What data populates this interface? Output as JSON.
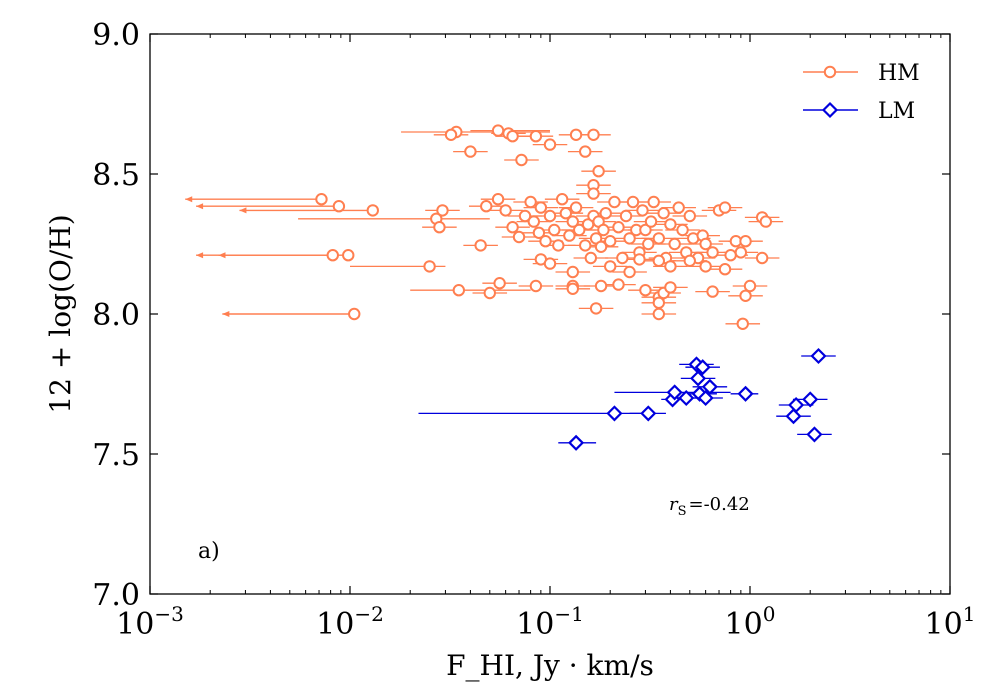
{
  "chart_data": {
    "type": "scatter",
    "title": "",
    "xlabel": "F_HI, Jy · km/s",
    "ylabel": "12 + log(O/H)",
    "xscale": "log",
    "xlim": [
      0.001,
      10
    ],
    "ylim": [
      7.0,
      9.0
    ],
    "xticks": [
      {
        "value": 0.001,
        "base": "10",
        "exp": "−3"
      },
      {
        "value": 0.01,
        "base": "10",
        "exp": "−2"
      },
      {
        "value": 0.1,
        "base": "10",
        "exp": "−1"
      },
      {
        "value": 1,
        "base": "10",
        "exp": "0"
      },
      {
        "value": 10,
        "base": "10",
        "exp": "1"
      }
    ],
    "yticks": [
      {
        "value": 7.0,
        "label": "7.0"
      },
      {
        "value": 7.5,
        "label": "7.5"
      },
      {
        "value": 8.0,
        "label": "8.0"
      },
      {
        "value": 8.5,
        "label": "8.5"
      },
      {
        "value": 9.0,
        "label": "9.0"
      }
    ],
    "grid": false,
    "legend_position": "top-right",
    "annotation": {
      "prefix": "r",
      "sub": "S",
      "value": "=-0.42"
    },
    "panel_label": "a)",
    "series": [
      {
        "name": "HM",
        "color": "#FF7F50",
        "marker": "circle",
        "points": [
          {
            "x": 0.034,
            "y": 8.65,
            "xerr": [
              0.018,
              0.1
            ]
          },
          {
            "x": 0.055,
            "y": 8.655,
            "xerr": [
              0.04,
              0.1
            ]
          },
          {
            "x": 0.032,
            "y": 8.64
          },
          {
            "x": 0.062,
            "y": 8.645
          },
          {
            "x": 0.065,
            "y": 8.635
          },
          {
            "x": 0.085,
            "y": 8.635
          },
          {
            "x": 0.135,
            "y": 8.64
          },
          {
            "x": 0.165,
            "y": 8.64
          },
          {
            "x": 0.1,
            "y": 8.605
          },
          {
            "x": 0.04,
            "y": 8.58
          },
          {
            "x": 0.15,
            "y": 8.58
          },
          {
            "x": 0.072,
            "y": 8.55
          },
          {
            "x": 0.175,
            "y": 8.51
          },
          {
            "x": 0.165,
            "y": 8.46
          },
          {
            "x": 0.165,
            "y": 8.43
          },
          {
            "x": 0.0072,
            "y": 8.41,
            "upper": 0.0015
          },
          {
            "x": 0.0088,
            "y": 8.385,
            "upper": 0.0017
          },
          {
            "x": 0.013,
            "y": 8.37,
            "upper": 0.0028
          },
          {
            "x": 0.0098,
            "y": 8.21,
            "upper": 0.0017
          },
          {
            "x": 0.0082,
            "y": 8.21,
            "upper": 0.0022
          },
          {
            "x": 0.0105,
            "y": 8.0,
            "upper": 0.0023
          },
          {
            "x": 0.027,
            "y": 8.34,
            "xerr": [
              0.0055,
              0.05
            ]
          },
          {
            "x": 0.029,
            "y": 8.37
          },
          {
            "x": 0.028,
            "y": 8.31
          },
          {
            "x": 0.045,
            "y": 8.245
          },
          {
            "x": 0.048,
            "y": 8.385
          },
          {
            "x": 0.055,
            "y": 8.41
          },
          {
            "x": 0.06,
            "y": 8.37
          },
          {
            "x": 0.065,
            "y": 8.31
          },
          {
            "x": 0.07,
            "y": 8.275
          },
          {
            "x": 0.075,
            "y": 8.35
          },
          {
            "x": 0.08,
            "y": 8.4
          },
          {
            "x": 0.083,
            "y": 8.33
          },
          {
            "x": 0.088,
            "y": 8.29
          },
          {
            "x": 0.09,
            "y": 8.38
          },
          {
            "x": 0.095,
            "y": 8.26
          },
          {
            "x": 0.1,
            "y": 8.35
          },
          {
            "x": 0.105,
            "y": 8.3
          },
          {
            "x": 0.11,
            "y": 8.245
          },
          {
            "x": 0.115,
            "y": 8.41
          },
          {
            "x": 0.12,
            "y": 8.36
          },
          {
            "x": 0.125,
            "y": 8.28
          },
          {
            "x": 0.13,
            "y": 8.33
          },
          {
            "x": 0.135,
            "y": 8.38
          },
          {
            "x": 0.14,
            "y": 8.3
          },
          {
            "x": 0.15,
            "y": 8.245
          },
          {
            "x": 0.155,
            "y": 8.32
          },
          {
            "x": 0.16,
            "y": 8.2
          },
          {
            "x": 0.165,
            "y": 8.35
          },
          {
            "x": 0.17,
            "y": 8.27
          },
          {
            "x": 0.175,
            "y": 8.33
          },
          {
            "x": 0.18,
            "y": 8.24
          },
          {
            "x": 0.185,
            "y": 8.3
          },
          {
            "x": 0.19,
            "y": 8.36
          },
          {
            "x": 0.2,
            "y": 8.26
          },
          {
            "x": 0.21,
            "y": 8.4
          },
          {
            "x": 0.22,
            "y": 8.31
          },
          {
            "x": 0.23,
            "y": 8.2
          },
          {
            "x": 0.24,
            "y": 8.35
          },
          {
            "x": 0.25,
            "y": 8.27
          },
          {
            "x": 0.26,
            "y": 8.4
          },
          {
            "x": 0.27,
            "y": 8.3
          },
          {
            "x": 0.28,
            "y": 8.22
          },
          {
            "x": 0.29,
            "y": 8.37
          },
          {
            "x": 0.3,
            "y": 8.3
          },
          {
            "x": 0.31,
            "y": 8.25
          },
          {
            "x": 0.32,
            "y": 8.33
          },
          {
            "x": 0.33,
            "y": 8.4
          },
          {
            "x": 0.35,
            "y": 8.27
          },
          {
            "x": 0.37,
            "y": 8.36
          },
          {
            "x": 0.38,
            "y": 8.2
          },
          {
            "x": 0.4,
            "y": 8.32
          },
          {
            "x": 0.42,
            "y": 8.25
          },
          {
            "x": 0.44,
            "y": 8.38
          },
          {
            "x": 0.46,
            "y": 8.3
          },
          {
            "x": 0.48,
            "y": 8.22
          },
          {
            "x": 0.5,
            "y": 8.35
          },
          {
            "x": 0.52,
            "y": 8.27
          },
          {
            "x": 0.55,
            "y": 8.2
          },
          {
            "x": 0.58,
            "y": 8.28
          },
          {
            "x": 0.6,
            "y": 8.25
          },
          {
            "x": 0.65,
            "y": 8.22
          },
          {
            "x": 0.7,
            "y": 8.37
          },
          {
            "x": 0.75,
            "y": 8.38
          },
          {
            "x": 0.8,
            "y": 8.21
          },
          {
            "x": 0.85,
            "y": 8.26
          },
          {
            "x": 0.9,
            "y": 8.22
          },
          {
            "x": 0.95,
            "y": 8.26
          },
          {
            "x": 1.15,
            "y": 8.345
          },
          {
            "x": 1.2,
            "y": 8.33
          },
          {
            "x": 1.15,
            "y": 8.2
          },
          {
            "x": 0.025,
            "y": 8.17,
            "xerr": [
              0.01,
              0.03
            ]
          },
          {
            "x": 0.09,
            "y": 8.195
          },
          {
            "x": 0.1,
            "y": 8.18
          },
          {
            "x": 0.13,
            "y": 8.15
          },
          {
            "x": 0.2,
            "y": 8.17
          },
          {
            "x": 0.25,
            "y": 8.15
          },
          {
            "x": 0.28,
            "y": 8.195
          },
          {
            "x": 0.35,
            "y": 8.19
          },
          {
            "x": 0.4,
            "y": 8.17
          },
          {
            "x": 0.5,
            "y": 8.19
          },
          {
            "x": 0.6,
            "y": 8.17
          },
          {
            "x": 0.75,
            "y": 8.16
          },
          {
            "x": 0.035,
            "y": 8.085,
            "xerr": [
              0.02,
              0.08
            ]
          },
          {
            "x": 0.05,
            "y": 8.075
          },
          {
            "x": 0.056,
            "y": 8.11
          },
          {
            "x": 0.085,
            "y": 8.1
          },
          {
            "x": 0.13,
            "y": 8.1
          },
          {
            "x": 0.13,
            "y": 8.09
          },
          {
            "x": 0.18,
            "y": 8.1
          },
          {
            "x": 0.22,
            "y": 8.105
          },
          {
            "x": 0.3,
            "y": 8.085
          },
          {
            "x": 0.35,
            "y": 8.06
          },
          {
            "x": 0.37,
            "y": 8.075
          },
          {
            "x": 0.4,
            "y": 8.095
          },
          {
            "x": 0.65,
            "y": 8.08
          },
          {
            "x": 0.95,
            "y": 8.065
          },
          {
            "x": 1.0,
            "y": 8.1
          },
          {
            "x": 0.17,
            "y": 8.02
          },
          {
            "x": 0.35,
            "y": 8.0
          },
          {
            "x": 0.35,
            "y": 8.04
          },
          {
            "x": 0.92,
            "y": 7.965
          }
        ]
      },
      {
        "name": "LM",
        "color": "#0000DD",
        "marker": "diamond",
        "points": [
          {
            "x": 0.135,
            "y": 7.54,
            "xerr": [
              0.11,
              0.17
            ]
          },
          {
            "x": 0.21,
            "y": 7.645,
            "xerr": [
              0.022,
              0.3
            ]
          },
          {
            "x": 0.31,
            "y": 7.645,
            "xerr": [
              0.25,
              0.38
            ]
          },
          {
            "x": 0.41,
            "y": 7.695,
            "xerr": [
              0.36,
              0.47
            ]
          },
          {
            "x": 0.42,
            "y": 7.72,
            "xerr": [
              0.21,
              0.8
            ]
          },
          {
            "x": 0.48,
            "y": 7.7
          },
          {
            "x": 0.54,
            "y": 7.82
          },
          {
            "x": 0.55,
            "y": 7.77
          },
          {
            "x": 0.56,
            "y": 7.715
          },
          {
            "x": 0.58,
            "y": 7.81
          },
          {
            "x": 0.6,
            "y": 7.7
          },
          {
            "x": 0.63,
            "y": 7.74
          },
          {
            "x": 0.95,
            "y": 7.715,
            "xerr": [
              0.8,
              1.1
            ]
          },
          {
            "x": 1.65,
            "y": 7.635
          },
          {
            "x": 1.7,
            "y": 7.675
          },
          {
            "x": 2.0,
            "y": 7.695
          },
          {
            "x": 2.1,
            "y": 7.57
          },
          {
            "x": 2.2,
            "y": 7.85
          }
        ]
      }
    ]
  }
}
